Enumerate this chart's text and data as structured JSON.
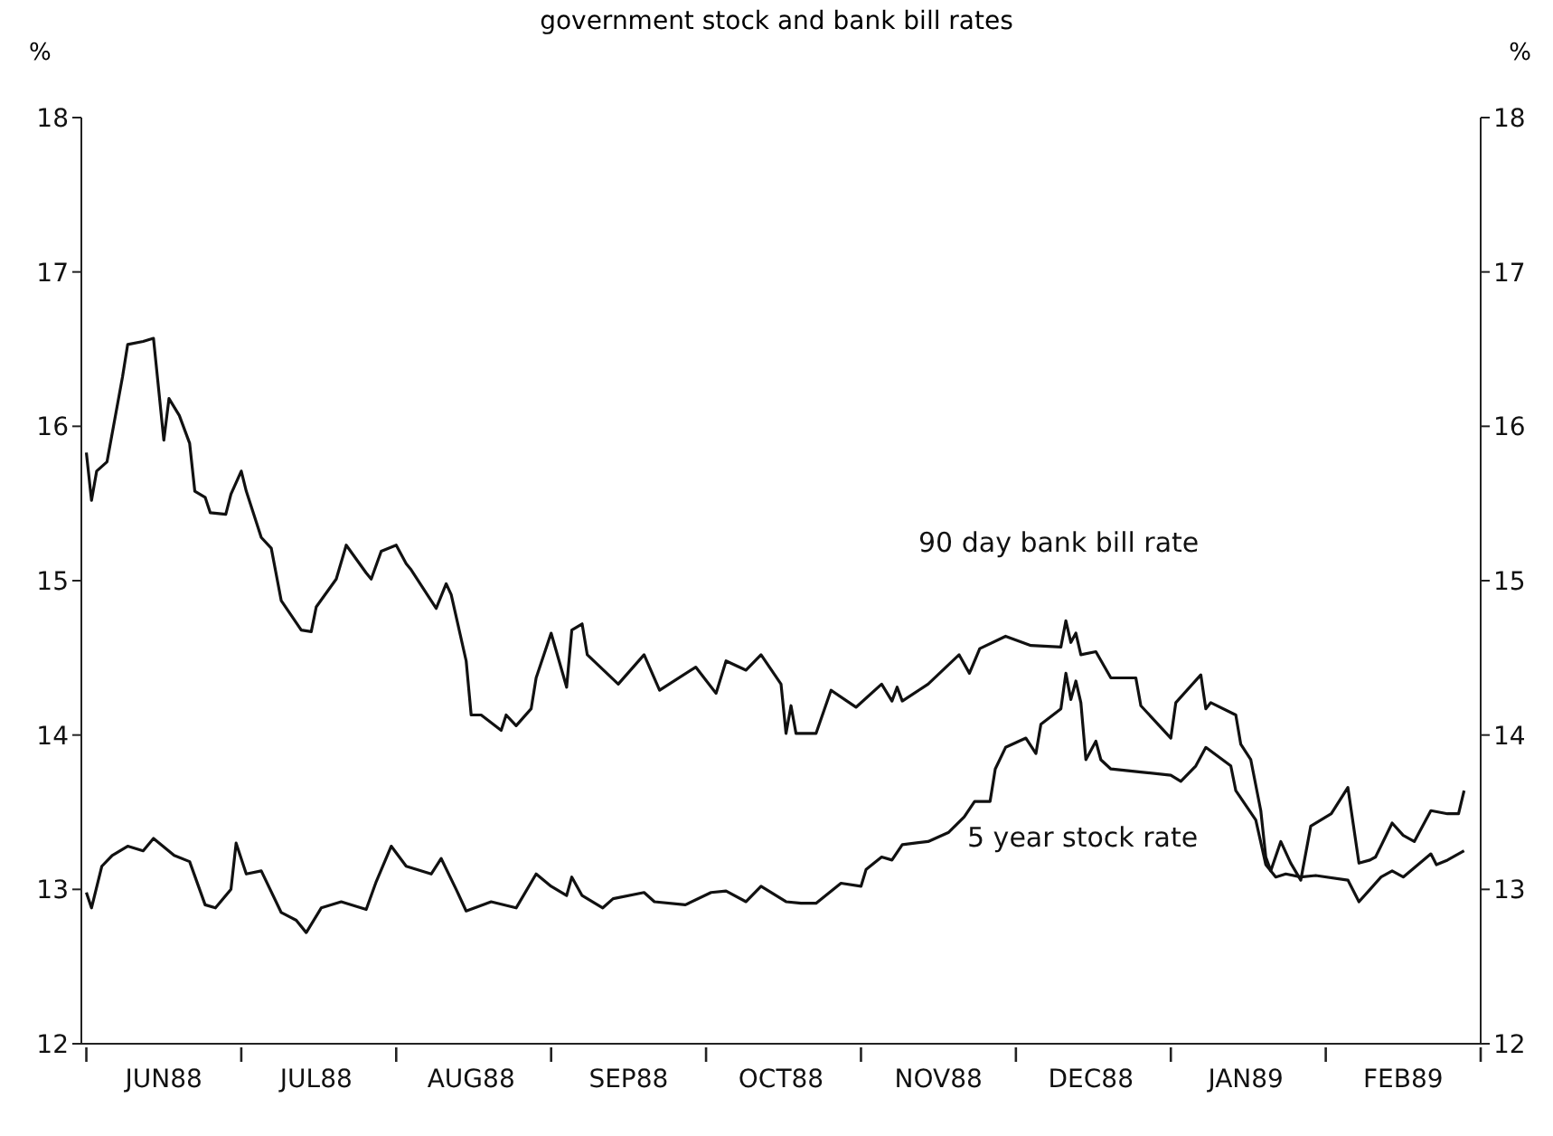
{
  "chart_data": {
    "type": "line",
    "title": "government stock and bank bill rates",
    "ylabel": "%",
    "y2label": "%",
    "xlim": [
      "1988-05-31",
      "1989-03-01"
    ],
    "xticks": [
      {
        "value": "1988-06-01",
        "label": null
      },
      {
        "value": "1988-06-16",
        "label": "JUN88"
      },
      {
        "value": "1988-07-01",
        "label": null
      },
      {
        "value": "1988-07-16",
        "label": "JUL88"
      },
      {
        "value": "1988-08-01",
        "label": null
      },
      {
        "value": "1988-08-16",
        "label": "AUG88"
      },
      {
        "value": "1988-09-01",
        "label": null
      },
      {
        "value": "1988-09-16",
        "label": "SEP88"
      },
      {
        "value": "1988-10-01",
        "label": null
      },
      {
        "value": "1988-10-16",
        "label": "OCT88"
      },
      {
        "value": "1988-11-01",
        "label": null
      },
      {
        "value": "1988-11-16",
        "label": "NOV88"
      },
      {
        "value": "1988-12-01",
        "label": null
      },
      {
        "value": "1988-12-16",
        "label": "DEC88"
      },
      {
        "value": "1989-01-01",
        "label": null
      },
      {
        "value": "1989-01-16",
        "label": "JAN89"
      },
      {
        "value": "1989-02-01",
        "label": null
      },
      {
        "value": "1989-02-15",
        "label": "FEB89"
      },
      {
        "value": "1989-03-01",
        "label": null
      }
    ],
    "ylim": [
      12,
      18
    ],
    "yticks": [
      12,
      13,
      14,
      15,
      16,
      17,
      18
    ],
    "y2lim": [
      12,
      18
    ],
    "y2ticks": [
      12,
      13,
      14,
      15,
      16,
      17,
      18
    ],
    "series": [
      {
        "name": "90 day bank bill rate",
        "color": "#111111",
        "x": [
          "1988-06-01",
          "1988-06-02",
          "1988-06-03",
          "1988-06-05",
          "1988-06-08",
          "1988-06-09",
          "1988-06-12",
          "1988-06-14",
          "1988-06-16",
          "1988-06-17",
          "1988-06-19",
          "1988-06-21",
          "1988-06-22",
          "1988-06-24",
          "1988-06-25",
          "1988-06-28",
          "1988-06-29",
          "1988-07-01",
          "1988-07-02",
          "1988-07-05",
          "1988-07-07",
          "1988-07-09",
          "1988-07-13",
          "1988-07-15",
          "1988-07-16",
          "1988-07-20",
          "1988-07-22",
          "1988-07-26",
          "1988-07-27",
          "1988-07-29",
          "1988-08-01",
          "1988-08-03",
          "1988-08-04",
          "1988-08-09",
          "1988-08-11",
          "1988-08-12",
          "1988-08-15",
          "1988-08-16",
          "1988-08-18",
          "1988-08-22",
          "1988-08-23",
          "1988-08-25",
          "1988-08-28",
          "1988-08-29",
          "1988-09-01",
          "1988-09-04",
          "1988-09-05",
          "1988-09-07",
          "1988-09-08",
          "1988-09-14",
          "1988-09-19",
          "1988-09-22",
          "1988-09-29",
          "1988-10-03",
          "1988-10-05",
          "1988-10-09",
          "1988-10-12",
          "1988-10-16",
          "1988-10-17",
          "1988-10-18",
          "1988-10-19",
          "1988-10-23",
          "1988-10-26",
          "1988-10-31",
          "1988-11-05",
          "1988-11-07",
          "1988-11-08",
          "1988-11-09",
          "1988-11-14",
          "1988-11-20",
          "1988-11-22",
          "1988-11-24",
          "1988-11-29",
          "1988-12-04",
          "1988-12-10",
          "1988-12-11",
          "1988-12-12",
          "1988-12-13",
          "1988-12-14",
          "1988-12-17",
          "1988-12-20",
          "1988-12-25",
          "1988-12-26",
          "1989-01-01",
          "1989-01-02",
          "1989-01-07",
          "1989-01-08",
          "1989-01-09",
          "1989-01-14",
          "1989-01-15",
          "1989-01-17",
          "1989-01-19",
          "1989-01-20",
          "1989-01-21",
          "1989-01-23",
          "1989-01-25",
          "1989-01-27",
          "1989-01-29",
          "1989-02-02",
          "1989-02-05",
          "1989-02-07",
          "1989-02-09",
          "1989-02-10",
          "1989-02-13",
          "1989-02-15",
          "1989-02-17",
          "1989-02-20",
          "1989-02-23",
          "1989-02-25",
          "1989-02-26"
        ],
        "values": [
          15.83,
          15.52,
          15.71,
          15.77,
          16.32,
          16.53,
          16.55,
          16.57,
          15.91,
          16.18,
          16.07,
          15.89,
          15.58,
          15.54,
          15.44,
          15.43,
          15.56,
          15.71,
          15.58,
          15.28,
          15.21,
          14.87,
          14.68,
          14.67,
          14.83,
          15.01,
          15.23,
          15.05,
          15.01,
          15.19,
          15.23,
          15.11,
          15.07,
          14.82,
          14.98,
          14.91,
          14.48,
          14.13,
          14.13,
          14.03,
          14.13,
          14.06,
          14.17,
          14.37,
          14.66,
          14.31,
          14.68,
          14.72,
          14.52,
          14.33,
          14.52,
          14.29,
          14.44,
          14.27,
          14.48,
          14.42,
          14.52,
          14.33,
          14.01,
          14.19,
          14.01,
          14.01,
          14.29,
          14.18,
          14.33,
          14.22,
          14.31,
          14.22,
          14.33,
          14.52,
          14.4,
          14.56,
          14.64,
          14.58,
          14.57,
          14.74,
          14.6,
          14.66,
          14.52,
          14.54,
          14.37,
          14.37,
          14.19,
          13.98,
          14.21,
          14.39,
          14.17,
          14.21,
          14.13,
          13.94,
          13.84,
          13.51,
          13.21,
          13.12,
          13.31,
          13.17,
          13.06,
          13.41,
          13.49,
          13.66,
          13.17,
          13.19,
          13.21,
          13.43,
          13.35,
          13.31,
          13.51,
          13.49,
          13.49,
          13.64
        ]
      },
      {
        "name": "5 year stock rate",
        "color": "#111111",
        "x": [
          "1988-06-01",
          "1988-06-02",
          "1988-06-04",
          "1988-06-06",
          "1988-06-09",
          "1988-06-12",
          "1988-06-14",
          "1988-06-18",
          "1988-06-21",
          "1988-06-24",
          "1988-06-26",
          "1988-06-29",
          "1988-06-30",
          "1988-07-02",
          "1988-07-05",
          "1988-07-09",
          "1988-07-12",
          "1988-07-14",
          "1988-07-17",
          "1988-07-21",
          "1988-07-26",
          "1988-07-28",
          "1988-07-31",
          "1988-08-03",
          "1988-08-08",
          "1988-08-10",
          "1988-08-13",
          "1988-08-15",
          "1988-08-20",
          "1988-08-25",
          "1988-08-29",
          "1988-09-01",
          "1988-09-04",
          "1988-09-05",
          "1988-09-07",
          "1988-09-11",
          "1988-09-13",
          "1988-09-19",
          "1988-09-21",
          "1988-09-27",
          "1988-10-02",
          "1988-10-05",
          "1988-10-09",
          "1988-10-12",
          "1988-10-17",
          "1988-10-20",
          "1988-10-23",
          "1988-10-28",
          "1988-11-01",
          "1988-11-02",
          "1988-11-05",
          "1988-11-07",
          "1988-11-09",
          "1988-11-14",
          "1988-11-18",
          "1988-11-21",
          "1988-11-23",
          "1988-11-26",
          "1988-11-27",
          "1988-11-29",
          "1988-12-03",
          "1988-12-05",
          "1988-12-06",
          "1988-12-10",
          "1988-12-11",
          "1988-12-12",
          "1988-12-13",
          "1988-12-14",
          "1988-12-15",
          "1988-12-17",
          "1988-12-18",
          "1988-12-20",
          "1988-12-26",
          "1989-01-01",
          "1989-01-03",
          "1989-01-06",
          "1989-01-08",
          "1989-01-13",
          "1989-01-14",
          "1989-01-18",
          "1989-01-20",
          "1989-01-22",
          "1989-01-24",
          "1989-01-27",
          "1989-01-30",
          "1989-02-05",
          "1989-02-07",
          "1989-02-09",
          "1989-02-11",
          "1989-02-13",
          "1989-02-15",
          "1989-02-20",
          "1989-02-21",
          "1989-02-23",
          "1989-02-26"
        ],
        "values": [
          12.98,
          12.88,
          13.15,
          13.22,
          13.28,
          13.25,
          13.33,
          13.22,
          13.18,
          12.9,
          12.88,
          13.0,
          13.3,
          13.1,
          13.12,
          12.85,
          12.8,
          12.72,
          12.88,
          12.92,
          12.87,
          13.05,
          13.28,
          13.15,
          13.1,
          13.2,
          13.0,
          12.86,
          12.92,
          12.88,
          13.1,
          13.02,
          12.96,
          13.08,
          12.96,
          12.88,
          12.94,
          12.98,
          12.92,
          12.9,
          12.98,
          12.99,
          12.92,
          13.02,
          12.92,
          12.91,
          12.91,
          13.04,
          13.02,
          13.13,
          13.21,
          13.19,
          13.29,
          13.31,
          13.37,
          13.47,
          13.57,
          13.57,
          13.78,
          13.92,
          13.98,
          13.88,
          14.07,
          14.17,
          14.4,
          14.23,
          14.35,
          14.21,
          13.84,
          13.96,
          13.84,
          13.78,
          13.76,
          13.74,
          13.7,
          13.8,
          13.92,
          13.8,
          13.64,
          13.45,
          13.16,
          13.08,
          13.1,
          13.08,
          13.09,
          13.06,
          12.92,
          13.0,
          13.08,
          13.12,
          13.08,
          13.23,
          13.16,
          13.19,
          13.25
        ]
      }
    ]
  }
}
